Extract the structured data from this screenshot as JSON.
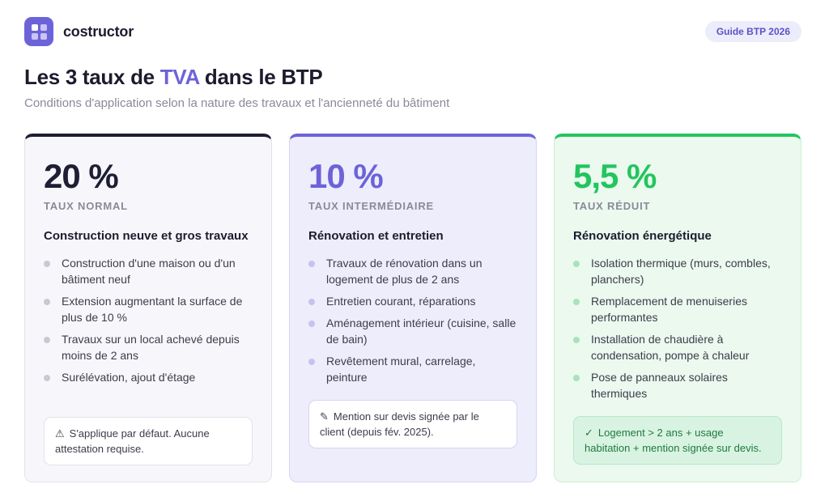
{
  "brand": {
    "name": "costructor",
    "logo_icon": "grid-icon"
  },
  "badge": "Guide BTP 2026",
  "title": {
    "before": "Les 3 taux de ",
    "accent": "TVA",
    "after": " dans le BTP"
  },
  "subtitle": "Conditions d'application selon la nature des travaux et l'ancienneté du bâtiment",
  "colors": {
    "dark": "#1e1e35",
    "accent": "#6c63d9",
    "green": "#22c55e"
  },
  "cards": [
    {
      "rate": "20 %",
      "label": "TAUX NORMAL",
      "heading": "Construction neuve et gros travaux",
      "items": [
        "Construction d'une maison ou d'un bâtiment neuf",
        "Extension augmentant la surface de plus de 10 %",
        "Travaux sur un local achevé depuis moins de 2 ans",
        "Surélévation, ajout d'étage"
      ],
      "note": {
        "icon": "⚠",
        "icon_name": "warning-icon",
        "text": "S'applique par défaut. Aucune attestation requise."
      }
    },
    {
      "rate": "10 %",
      "label": "TAUX INTERMÉDIAIRE",
      "heading": "Rénovation et entretien",
      "items": [
        "Travaux de rénovation dans un logement de plus de 2 ans",
        "Entretien courant, réparations",
        "Aménagement intérieur (cuisine, salle de bain)",
        "Revêtement mural, carrelage, peinture"
      ],
      "note": {
        "icon": "✎",
        "icon_name": "pencil-icon",
        "text": "Mention sur devis signée par le client (depuis fév. 2025)."
      }
    },
    {
      "rate": "5,5 %",
      "label": "TAUX RÉDUIT",
      "heading": "Rénovation énergétique",
      "items": [
        "Isolation thermique (murs, combles, planchers)",
        "Remplacement de menuiseries performantes",
        "Installation de chaudière à condensation, pompe à chaleur",
        "Pose de panneaux solaires thermiques"
      ],
      "note": {
        "icon": "✓",
        "icon_name": "check-icon",
        "text": "Logement > 2 ans + usage habitation + mention signée sur devis."
      }
    }
  ]
}
